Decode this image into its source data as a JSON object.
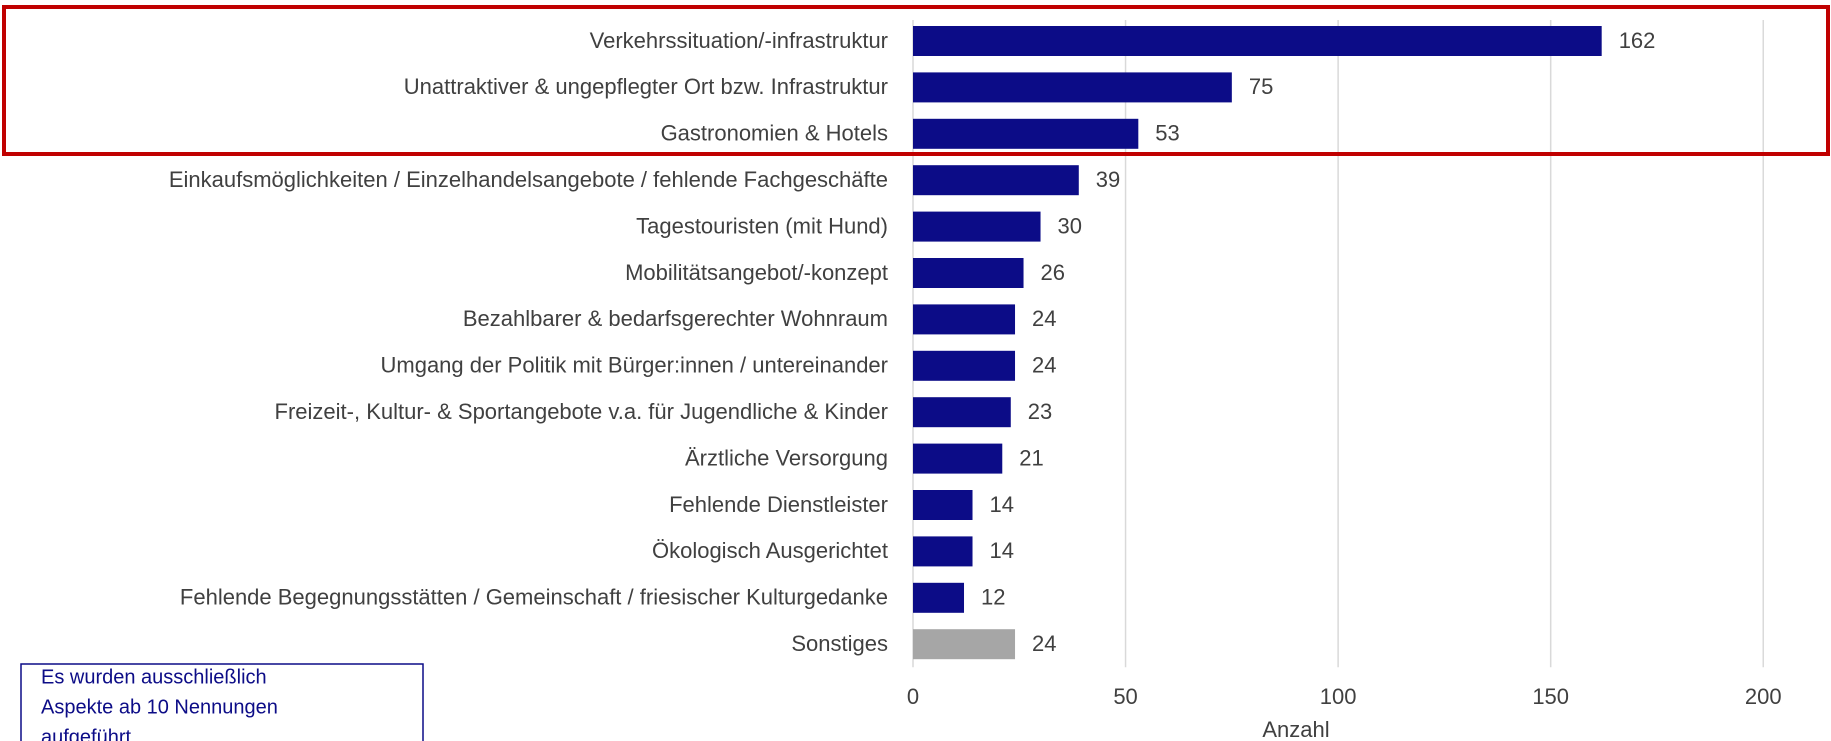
{
  "chart_data": {
    "type": "barh",
    "categories": [
      "Verkehrssituation/-infrastruktur",
      "Unattraktiver & ungepflegter Ort bzw. Infrastruktur",
      "Gastronomien & Hotels",
      "Einkaufsmöglichkeiten / Einzelhandelsangebote / fehlende Fachgeschäfte",
      "Tagestouristen (mit Hund)",
      "Mobilitätsangebot/-konzept",
      "Bezahlbarer & bedarfsgerechter Wohnraum",
      "Umgang der Politik mit Bürger:innen / untereinander",
      "Freizeit-, Kultur- & Sportangebote v.a. für Jugendliche & Kinder",
      "Ärztliche Versorgung",
      "Fehlende Dienstleister",
      "Ökologisch Ausgerichtet",
      "Fehlende Begegnungsstätten / Gemeinschaft / friesischer Kulturgedanke",
      "Sonstiges"
    ],
    "values": [
      162,
      75,
      53,
      39,
      30,
      26,
      24,
      24,
      23,
      21,
      14,
      14,
      12,
      24
    ],
    "colors": [
      "#0c0c87",
      "#0c0c87",
      "#0c0c87",
      "#0c0c87",
      "#0c0c87",
      "#0c0c87",
      "#0c0c87",
      "#0c0c87",
      "#0c0c87",
      "#0c0c87",
      "#0c0c87",
      "#0c0c87",
      "#0c0c87",
      "#a6a6a6"
    ],
    "x_label": "Anzahl",
    "xlim": [
      0,
      215
    ],
    "xticks": [
      0,
      50,
      100,
      150,
      200
    ],
    "grid": true,
    "note": [
      "Es wurden ausschließlich",
      "Aspekte ab 10 Nennungen",
      "aufgeführt"
    ]
  }
}
